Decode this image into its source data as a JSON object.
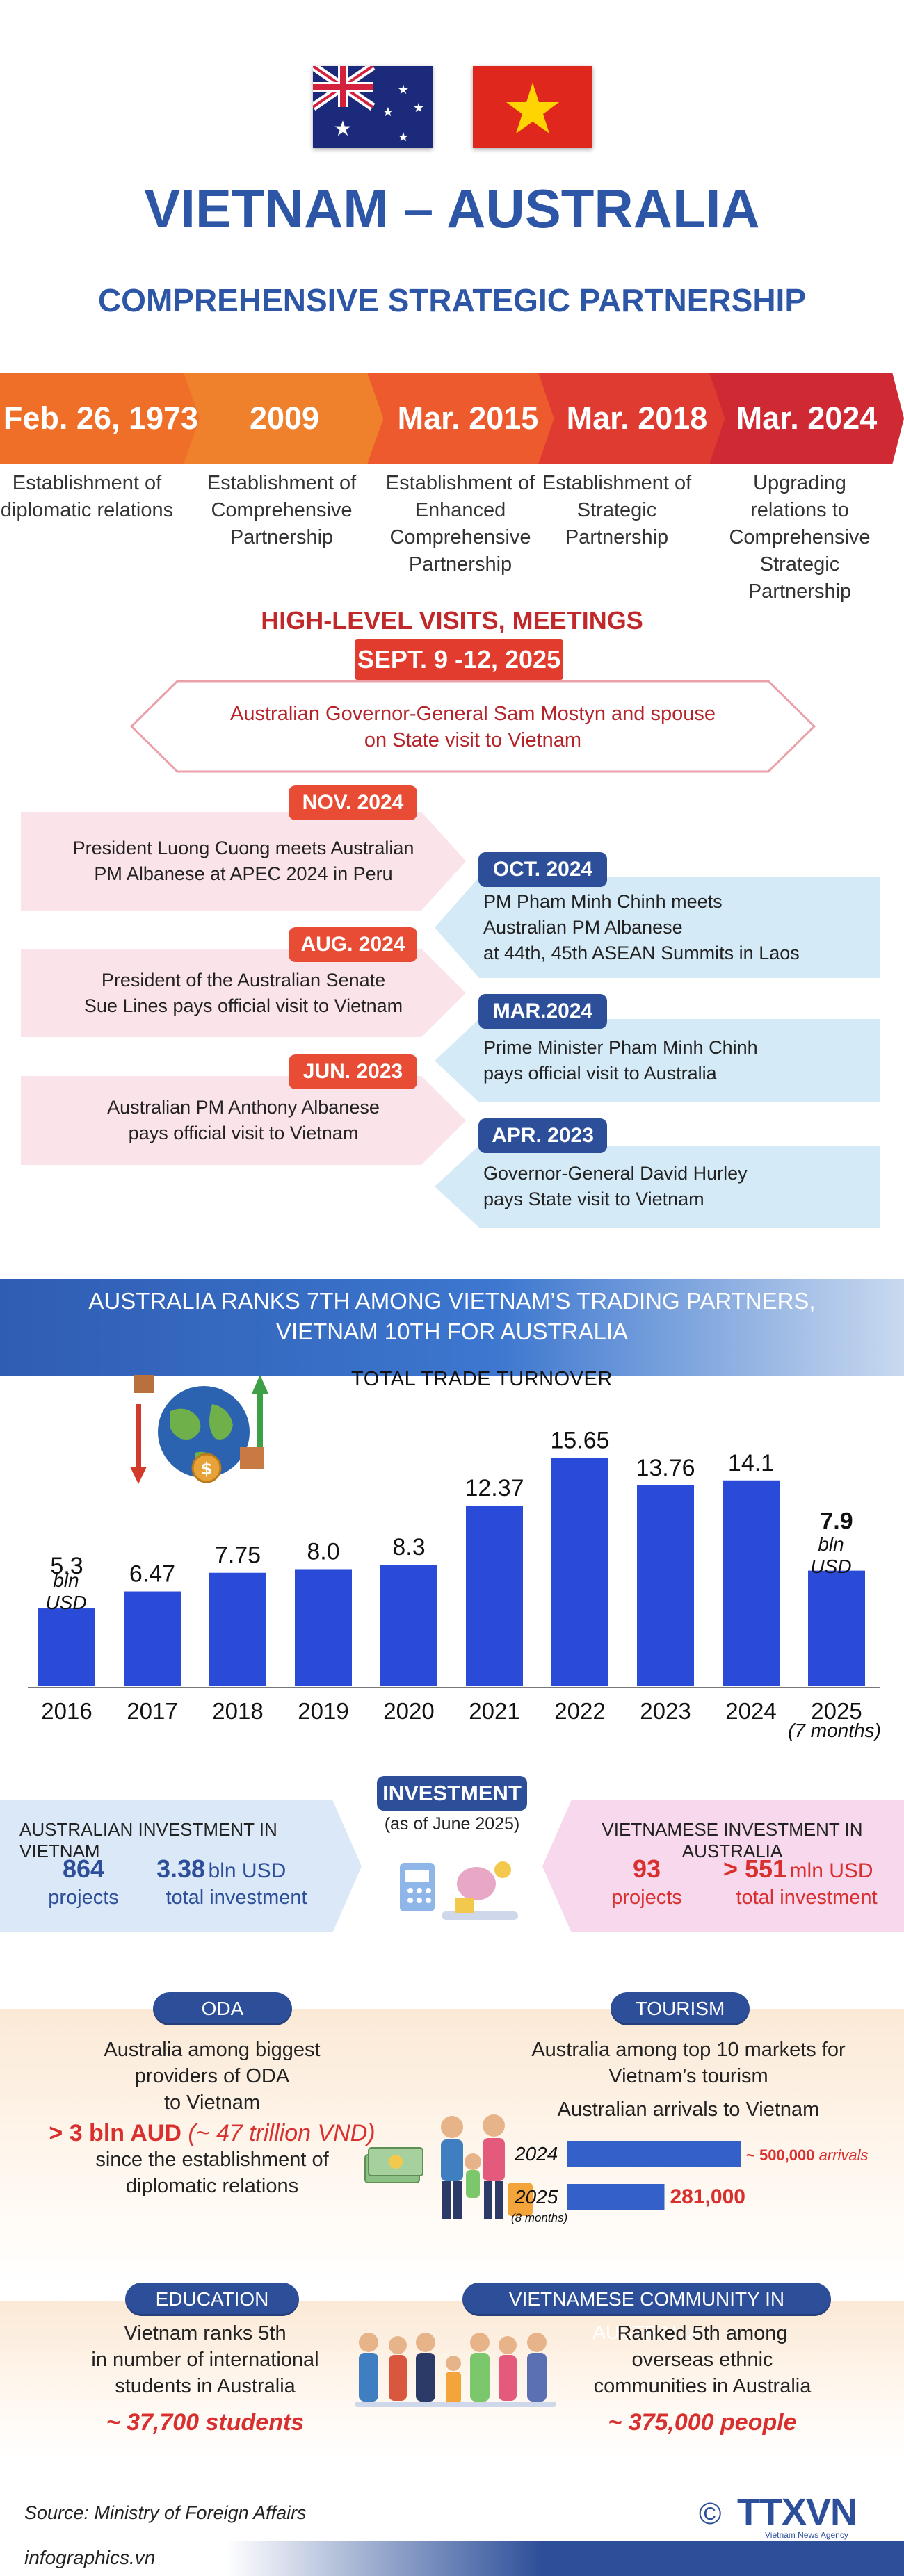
{
  "header": {
    "title": "VIETNAM – AUSTRALIA",
    "subtitle": "COMPREHENSIVE STRATEGIC PARTNERSHIP"
  },
  "timeline": [
    {
      "date": "Feb. 26, 1973",
      "desc": "Establishment of diplomatic relations",
      "color": "#ef6f28"
    },
    {
      "date": "2009",
      "desc": "Establishment of Comprehensive Partnership",
      "color": "#f0812c"
    },
    {
      "date": "Mar. 2015",
      "desc": "Establishment of Enhanced Comprehensive Partnership",
      "color": "#ec5a2d"
    },
    {
      "date": "Mar. 2018",
      "desc": "Establishment of Strategic Partnership",
      "color": "#e03b31"
    },
    {
      "date": "Mar. 2024",
      "desc": "Upgrading relations to Comprehensive Strategic Partnership",
      "color": "#cf2a34"
    }
  ],
  "visits": {
    "heading": "HIGH-LEVEL VISITS, MEETINGS",
    "top_date": "SEPT. 9 -12, 2025",
    "top_text_1": "Australian Governor-General Sam Mostyn and spouse",
    "top_text_2": "on State visit to Vietnam",
    "left": [
      {
        "date": "NOV. 2024",
        "l1": "President Luong Cuong meets Australian",
        "l2": "PM Albanese at APEC 2024 in Peru"
      },
      {
        "date": "AUG. 2024",
        "l1": "President of the Australian Senate",
        "l2": "Sue Lines pays official visit to Vietnam"
      },
      {
        "date": "JUN. 2023",
        "l1": "Australian PM Anthony Albanese",
        "l2": "pays official visit to Vietnam"
      }
    ],
    "right": [
      {
        "date": "OCT. 2024",
        "l1": "PM Pham Minh Chinh meets",
        "l2": "Australian PM Albanese",
        "l3": "at 44th, 45th ASEAN Summits in Laos"
      },
      {
        "date": "MAR.2024",
        "l1": "Prime Minister Pham Minh Chinh",
        "l2": "pays official visit to Australia"
      },
      {
        "date": "APR. 2023",
        "l1": "Governor-General David Hurley",
        "l2": "pays State visit to Vietnam"
      }
    ]
  },
  "trade": {
    "banner_1": "AUSTRALIA RANKS 7TH AMONG VIETNAM’S TRADING PARTNERS,",
    "banner_2": "VIETNAM 10TH FOR AUSTRALIA",
    "chart_title": "TOTAL TRADE TURNOVER",
    "unit_first": "bln USD",
    "unit_last": "bln USD",
    "last_note": "(7 months)"
  },
  "chart_data": {
    "type": "bar",
    "title": "TOTAL TRADE TURNOVER",
    "categories": [
      "2016",
      "2017",
      "2018",
      "2019",
      "2020",
      "2021",
      "2022",
      "2023",
      "2024",
      "2025"
    ],
    "values": [
      5.3,
      6.47,
      7.75,
      8.0,
      8.3,
      12.37,
      15.65,
      13.76,
      14.1,
      7.9
    ],
    "labels": [
      "5.3",
      "6.47",
      "7.75",
      "8.0",
      "8.3",
      "12.37",
      "15.65",
      "13.76",
      "14.1",
      "7.9"
    ],
    "ylim": [
      0,
      16
    ],
    "grid": false,
    "color": "#2a4ad8"
  },
  "investment": {
    "label": "INVESTMENT",
    "as_of": "(as of June 2025)",
    "au_in_vn": {
      "title": "AUSTRALIAN INVESTMENT IN VIETNAM",
      "projects": "864",
      "projects_label": "projects",
      "amount": "3.38",
      "amount_unit": "bln USD",
      "amount_label": "total investment"
    },
    "vn_in_au": {
      "title": "VIETNAMESE INVESTMENT IN AUSTRALIA",
      "projects": "93",
      "projects_label": "projects",
      "amount": "> 551",
      "amount_unit": "mln USD",
      "amount_label": "total investment"
    }
  },
  "oda": {
    "label": "ODA",
    "l1": "Australia among biggest",
    "l2": "providers of ODA",
    "l3": "to Vietnam",
    "big": "> 3 bln AUD",
    "big_note": "(~ 47 trillion VND)",
    "l4": "since the establishment of",
    "l5": "diplomatic relations"
  },
  "tourism": {
    "label": "TOURISM",
    "l1": "Australia among top 10 markets for",
    "l2": "Vietnam’s tourism",
    "l3": "Australian arrivals to Vietnam",
    "rows": [
      {
        "year": "2024",
        "value_label": "~ 500,000",
        "suffix": "arrivals",
        "value": 500000
      },
      {
        "year": "2025",
        "value_label": "281,000",
        "suffix": "",
        "value": 281000,
        "note": "(8 months)"
      }
    ]
  },
  "education": {
    "label": "EDUCATION",
    "l1": "Vietnam ranks 5th",
    "l2": "in number of international",
    "l3": "students in Australia",
    "big": "~ 37,700 students"
  },
  "community": {
    "label": "VIETNAMESE COMMUNITY IN AUSTRALIA",
    "l1": "Ranked 5th among",
    "l2": "overseas ethnic",
    "l3": "communities in Australia",
    "big": "~ 375,000 people"
  },
  "footer": {
    "source": "Source: Ministry of Foreign Affairs",
    "site": "infographics.vn",
    "copyright": "©",
    "brand": "TTXVN",
    "brand_sub": "Vietnam News Agency"
  }
}
